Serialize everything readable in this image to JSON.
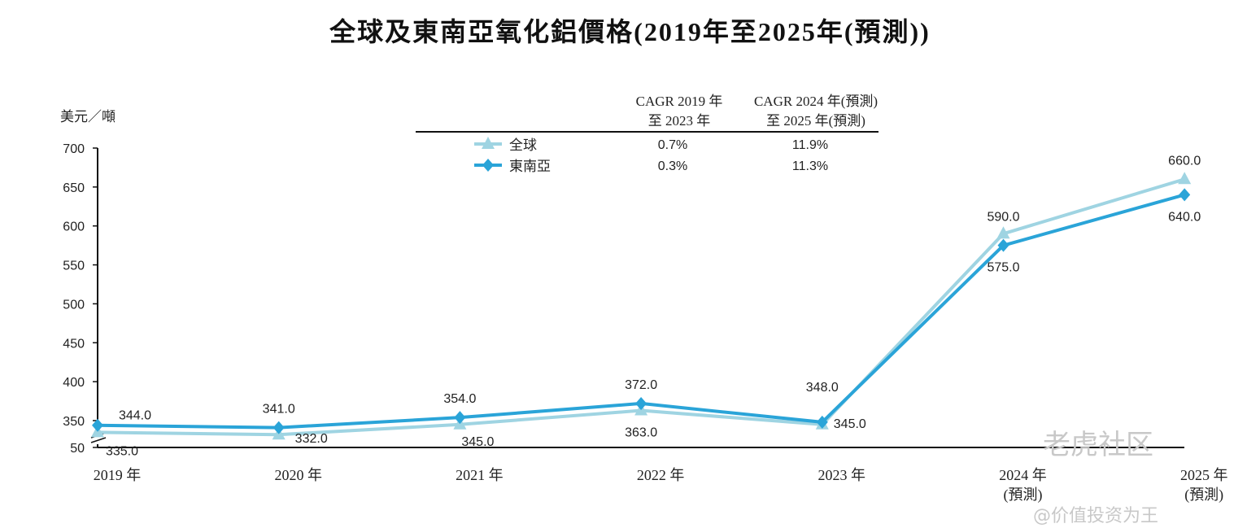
{
  "chart_data": {
    "type": "line",
    "title": "全球及東南亞氧化鋁價格(2019年至2025年(預測))",
    "ylabel": "美元／噸",
    "xlabel": "",
    "categories": [
      "2019 年",
      "2020 年",
      "2021 年",
      "2022 年",
      "2023 年",
      "2024 年\n(預測)",
      "2025 年\n(預測)"
    ],
    "yticks": [
      50,
      350,
      400,
      450,
      500,
      550,
      600,
      650,
      700
    ],
    "ylim": [
      50,
      700
    ],
    "axis_break": "between 50 and 350",
    "grid": false,
    "legend_placement": "top-center table",
    "series": [
      {
        "name": "全球",
        "marker": "triangle",
        "color": "#9fd4e2",
        "values": [
          335.0,
          332.0,
          345.0,
          363.0,
          345.0,
          590.0,
          660.0
        ]
      },
      {
        "name": "東南亞",
        "marker": "diamond",
        "color": "#2aa4d8",
        "values": [
          344.0,
          341.0,
          354.0,
          372.0,
          348.0,
          575.0,
          640.0
        ]
      }
    ],
    "cagr_table": {
      "headers": [
        "CAGR 2019 年\n至 2023 年",
        "CAGR 2024 年(預測)\n至 2025 年(預測)"
      ],
      "rows": [
        {
          "name": "全球",
          "values": [
            "0.7%",
            "11.9%"
          ]
        },
        {
          "name": "東南亞",
          "values": [
            "0.3%",
            "11.3%"
          ]
        }
      ]
    }
  },
  "watermark": {
    "logo_text": "老虎社区",
    "handle": "@价值投资为王"
  }
}
